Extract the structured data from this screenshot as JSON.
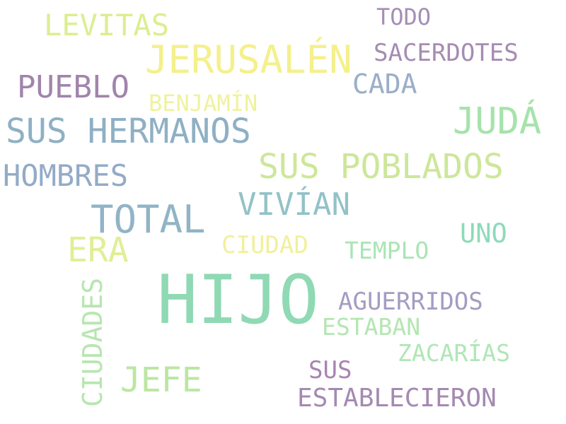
{
  "words": {
    "hijo": {
      "text": "HIJO",
      "color": "#8fd9b4"
    },
    "jerusalen": {
      "text": "JERUSALÉN",
      "color": "#f4f08c"
    },
    "sus_hermanos": {
      "text": "SUS HERMANOS",
      "color": "#8fb0c4"
    },
    "sus_poblados": {
      "text": "SUS POBLADOS",
      "color": "#cde79a"
    },
    "juda": {
      "text": "JUDÁ",
      "color": "#a6e3ab"
    },
    "total": {
      "text": "TOTAL",
      "color": "#91b4c6"
    },
    "pueblo": {
      "text": "PUEBLO",
      "color": "#a184ac"
    },
    "hombres": {
      "text": "HOMBRES",
      "color": "#93abc8"
    },
    "levitas": {
      "text": "LEVITAS",
      "color": "#dcee90"
    },
    "vivian": {
      "text": "VIVÍAN",
      "color": "#92c2c7"
    },
    "era": {
      "text": "ERA",
      "color": "#e0ef96"
    },
    "jefe": {
      "text": "JEFE",
      "color": "#bce6a2"
    },
    "cada": {
      "text": "CADA",
      "color": "#9aaec8"
    },
    "sacerdotes": {
      "text": "SACERDOTES",
      "color": "#a68cb2"
    },
    "todo": {
      "text": "TODO",
      "color": "#a58fb6"
    },
    "benjamin": {
      "text": "BENJAMÍN",
      "color": "#eff29e"
    },
    "ciudad": {
      "text": "CIUDAD",
      "color": "#f1f09c"
    },
    "templo": {
      "text": "TEMPLO",
      "color": "#a9e5b4"
    },
    "uno": {
      "text": "UNO",
      "color": "#8edab8"
    },
    "aguerridos": {
      "text": "AGUERRIDOS",
      "color": "#a49cc2"
    },
    "estaban": {
      "text": "ESTABAN",
      "color": "#b4e6b2"
    },
    "zacarias": {
      "text": "ZACARÍAS",
      "color": "#b0e6b5"
    },
    "sus": {
      "text": "SUS",
      "color": "#a885b1"
    },
    "establecieron": {
      "text": "ESTABLECIERON",
      "color": "#a48ab2"
    },
    "ciudades": {
      "text": "CIUDADES",
      "color": "#b7e6b0"
    }
  }
}
